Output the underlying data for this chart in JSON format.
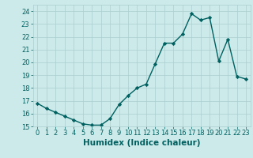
{
  "x": [
    0,
    1,
    2,
    3,
    4,
    5,
    6,
    7,
    8,
    9,
    10,
    11,
    12,
    13,
    14,
    15,
    16,
    17,
    18,
    19,
    20,
    21,
    22,
    23
  ],
  "y": [
    16.8,
    16.4,
    16.1,
    15.8,
    15.5,
    15.2,
    15.1,
    15.1,
    15.6,
    16.7,
    17.4,
    18.0,
    18.3,
    19.9,
    21.5,
    21.5,
    22.2,
    23.8,
    23.3,
    23.5,
    20.1,
    21.8,
    18.9,
    18.7
  ],
  "line_color": "#006060",
  "marker": "D",
  "marker_size": 2.2,
  "bg_color": "#cceaea",
  "grid_color": "#aacece",
  "xlabel": "Humidex (Indice chaleur)",
  "ylim": [
    15,
    24.5
  ],
  "xlim": [
    -0.5,
    23.5
  ],
  "yticks": [
    15,
    16,
    17,
    18,
    19,
    20,
    21,
    22,
    23,
    24
  ],
  "xticks": [
    0,
    1,
    2,
    3,
    4,
    5,
    6,
    7,
    8,
    9,
    10,
    11,
    12,
    13,
    14,
    15,
    16,
    17,
    18,
    19,
    20,
    21,
    22,
    23
  ],
  "xtick_labels": [
    "0",
    "1",
    "2",
    "3",
    "4",
    "5",
    "6",
    "7",
    "8",
    "9",
    "10",
    "11",
    "12",
    "13",
    "14",
    "15",
    "16",
    "17",
    "18",
    "19",
    "20",
    "21",
    "22",
    "23"
  ],
  "ytick_labels": [
    "15",
    "16",
    "17",
    "18",
    "19",
    "20",
    "21",
    "22",
    "23",
    "24"
  ],
  "tick_fontsize": 6.0,
  "xlabel_fontsize": 7.5,
  "line_width": 1.0
}
